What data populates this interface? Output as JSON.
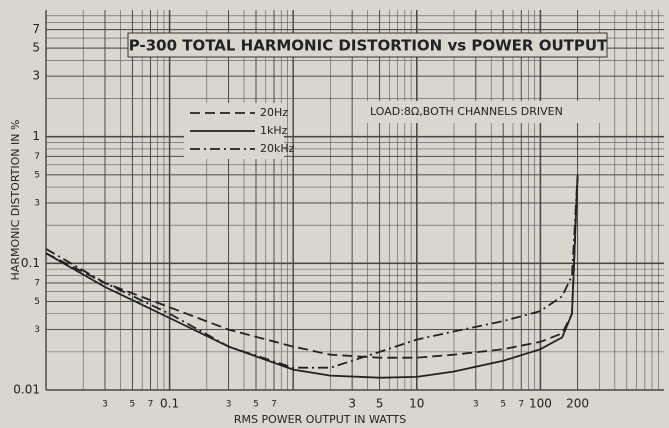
{
  "chart_data": {
    "type": "line",
    "title": "P-300 TOTAL HARMONIC DISTORTION vs POWER OUTPUT",
    "annotation": "LOAD:8Ω,BOTH CHANNELS DRIVEN",
    "x_label": "RMS POWER OUTPUT IN WATTS",
    "y_label": "HARMONIC DISTORTION IN %",
    "log_x": true,
    "log_y": true,
    "grid": true,
    "minor_grid": true,
    "xlim": [
      0.01,
      1000
    ],
    "ylim": [
      0.01,
      10
    ],
    "xticks": [
      {
        "value": 0.03,
        "label": "3"
      },
      {
        "value": 0.05,
        "label": "5"
      },
      {
        "value": 0.07,
        "label": "7"
      },
      0.1,
      {
        "value": 0.3,
        "label": "3"
      },
      {
        "value": 0.5,
        "label": "5"
      },
      {
        "value": 0.7,
        "label": "7"
      },
      3,
      5,
      10,
      {
        "value": 30,
        "label": "3"
      },
      {
        "value": 50,
        "label": "5"
      },
      {
        "value": 70,
        "label": "7"
      },
      100,
      200
    ],
    "yticks": [
      0.01,
      {
        "value": 0.03,
        "label": "3"
      },
      {
        "value": 0.05,
        "label": "5"
      },
      {
        "value": 0.07,
        "label": "7"
      },
      0.1,
      {
        "value": 0.3,
        "label": "3"
      },
      {
        "value": 0.5,
        "label": "5"
      },
      {
        "value": 0.7,
        "label": "7"
      },
      1,
      3,
      5,
      7
    ],
    "x": [
      0.01,
      0.03,
      0.1,
      0.3,
      1,
      2,
      5,
      10,
      20,
      50,
      100,
      150,
      180,
      200
    ],
    "series": [
      {
        "name": "20Hz",
        "color": "#222222",
        "dash": "dashed",
        "values": [
          0.12,
          0.07,
          0.045,
          0.03,
          0.022,
          0.019,
          0.018,
          0.018,
          0.019,
          0.021,
          0.024,
          0.028,
          0.04,
          0.5
        ]
      },
      {
        "name": "1kHz",
        "color": "#222222",
        "dash": "solid",
        "values": [
          0.12,
          0.065,
          0.037,
          0.022,
          0.0145,
          0.013,
          0.0125,
          0.0127,
          0.014,
          0.017,
          0.021,
          0.026,
          0.04,
          0.5
        ]
      },
      {
        "name": "20kHz",
        "color": "#222222",
        "dash": "dashdot",
        "values": [
          0.13,
          0.07,
          0.04,
          0.022,
          0.015,
          0.015,
          0.02,
          0.025,
          0.029,
          0.035,
          0.042,
          0.055,
          0.08,
          0.5
        ]
      }
    ],
    "legend": "upper left"
  }
}
